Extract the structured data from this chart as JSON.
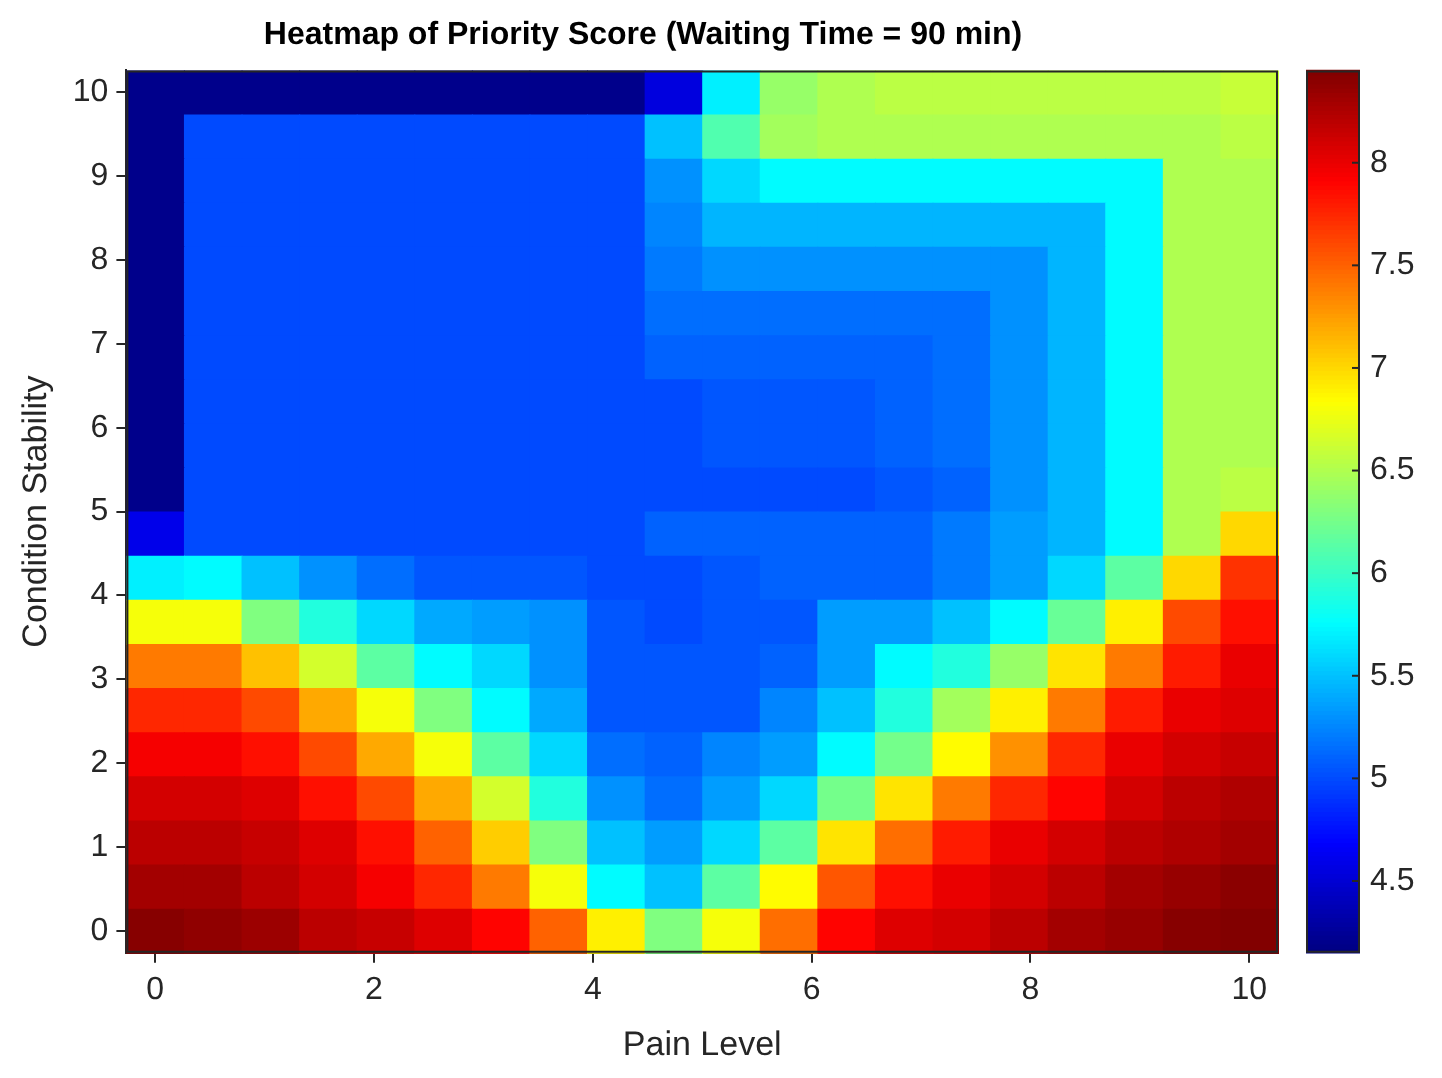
{
  "chart_data": {
    "type": "heatmap",
    "title": "Heatmap of Priority Score (Waiting Time = 90 min)",
    "xlabel": "Pain Level",
    "ylabel": "Condition Stability",
    "x": [
      0,
      0.526,
      1.053,
      1.579,
      2.105,
      2.632,
      3.158,
      3.684,
      4.211,
      4.737,
      5.263,
      5.789,
      6.316,
      6.842,
      7.368,
      7.895,
      8.421,
      8.947,
      9.474,
      10
    ],
    "y": [
      10,
      9.474,
      8.947,
      8.421,
      7.895,
      7.368,
      6.842,
      6.316,
      5.789,
      5.263,
      4.737,
      4.211,
      3.684,
      3.158,
      2.632,
      2.105,
      1.579,
      1.053,
      0.526,
      0
    ],
    "cells": [
      [
        4.2,
        4.2,
        4.2,
        4.2,
        4.2,
        4.2,
        4.2,
        4.2,
        4.2,
        4.55,
        5.7,
        6.4,
        6.5,
        6.55,
        6.55,
        6.55,
        6.55,
        6.55,
        6.55,
        6.6
      ],
      [
        4.2,
        5.0,
        5.0,
        5.0,
        5.0,
        5.0,
        5.0,
        5.0,
        5.0,
        5.5,
        6.1,
        6.45,
        6.5,
        6.5,
        6.5,
        6.5,
        6.5,
        6.5,
        6.5,
        6.55
      ],
      [
        4.2,
        5.0,
        5.0,
        5.0,
        5.0,
        5.0,
        5.0,
        5.0,
        5.0,
        5.3,
        5.6,
        5.75,
        5.75,
        5.75,
        5.75,
        5.75,
        5.75,
        5.75,
        6.5,
        6.5
      ],
      [
        4.2,
        5.0,
        5.0,
        5.0,
        5.0,
        5.0,
        5.0,
        5.0,
        5.0,
        5.25,
        5.45,
        5.45,
        5.45,
        5.45,
        5.45,
        5.45,
        5.45,
        5.75,
        6.5,
        6.5
      ],
      [
        4.2,
        5.0,
        5.0,
        5.0,
        5.0,
        5.0,
        5.0,
        5.0,
        5.0,
        5.2,
        5.3,
        5.3,
        5.3,
        5.3,
        5.3,
        5.3,
        5.45,
        5.75,
        6.5,
        6.5
      ],
      [
        4.2,
        5.0,
        5.0,
        5.0,
        5.0,
        5.0,
        5.0,
        5.0,
        5.0,
        5.15,
        5.15,
        5.15,
        5.15,
        5.15,
        5.15,
        5.3,
        5.45,
        5.75,
        6.5,
        6.5
      ],
      [
        4.2,
        5.0,
        5.0,
        5.0,
        5.0,
        5.0,
        5.0,
        5.0,
        5.0,
        5.1,
        5.1,
        5.1,
        5.1,
        5.1,
        5.15,
        5.3,
        5.45,
        5.75,
        6.5,
        6.5
      ],
      [
        4.2,
        5.0,
        5.0,
        5.0,
        5.0,
        5.0,
        5.0,
        5.0,
        5.0,
        5.0,
        5.05,
        5.05,
        5.05,
        5.1,
        5.15,
        5.3,
        5.45,
        5.75,
        6.5,
        6.5
      ],
      [
        4.2,
        5.0,
        5.0,
        5.0,
        5.0,
        5.0,
        5.0,
        5.0,
        5.0,
        5.0,
        5.05,
        5.05,
        5.05,
        5.1,
        5.15,
        5.3,
        5.45,
        5.75,
        6.5,
        6.5
      ],
      [
        4.2,
        5.0,
        5.0,
        5.0,
        5.0,
        5.0,
        5.0,
        5.0,
        5.0,
        5.0,
        5.0,
        5.0,
        5.0,
        5.05,
        5.1,
        5.3,
        5.45,
        5.75,
        6.5,
        6.55
      ],
      [
        4.6,
        5.0,
        5.0,
        5.0,
        5.0,
        5.0,
        5.0,
        5.0,
        5.0,
        5.1,
        5.1,
        5.1,
        5.1,
        5.1,
        5.2,
        5.35,
        5.45,
        5.75,
        6.5,
        7.0
      ],
      [
        5.7,
        5.75,
        5.5,
        5.3,
        5.15,
        5.05,
        5.05,
        5.05,
        5.0,
        5.0,
        5.05,
        5.1,
        5.1,
        5.1,
        5.2,
        5.35,
        5.6,
        6.15,
        7.0,
        7.7
      ],
      [
        6.8,
        6.8,
        6.3,
        5.9,
        5.6,
        5.4,
        5.35,
        5.3,
        5.05,
        5.0,
        5.05,
        5.05,
        5.35,
        5.35,
        5.5,
        5.75,
        6.2,
        6.9,
        7.6,
        7.85
      ],
      [
        7.4,
        7.4,
        7.1,
        6.65,
        6.15,
        5.75,
        5.6,
        5.3,
        5.05,
        5.05,
        5.05,
        5.1,
        5.35,
        5.75,
        5.9,
        6.4,
        6.95,
        7.4,
        7.8,
        8.0
      ],
      [
        7.75,
        7.75,
        7.6,
        7.2,
        6.8,
        6.3,
        5.75,
        5.4,
        5.05,
        5.05,
        5.05,
        5.25,
        5.5,
        5.9,
        6.45,
        6.9,
        7.4,
        7.8,
        8.0,
        8.05
      ],
      [
        7.95,
        7.95,
        7.85,
        7.6,
        7.2,
        6.8,
        6.15,
        5.6,
        5.15,
        5.1,
        5.25,
        5.35,
        5.75,
        6.25,
        6.85,
        7.3,
        7.75,
        8.0,
        8.1,
        8.15
      ],
      [
        8.1,
        8.1,
        8.05,
        7.85,
        7.6,
        7.2,
        6.65,
        5.9,
        5.3,
        5.15,
        5.35,
        5.6,
        6.25,
        6.95,
        7.4,
        7.75,
        7.9,
        8.1,
        8.2,
        8.25
      ],
      [
        8.2,
        8.2,
        8.15,
        8.05,
        7.85,
        7.5,
        7.05,
        6.3,
        5.5,
        5.35,
        5.6,
        6.15,
        6.95,
        7.45,
        7.8,
        8.0,
        8.1,
        8.2,
        8.25,
        8.3
      ],
      [
        8.3,
        8.3,
        8.2,
        8.1,
        7.95,
        7.75,
        7.4,
        6.8,
        5.75,
        5.5,
        6.15,
        6.85,
        7.55,
        7.85,
        8.0,
        8.1,
        8.2,
        8.3,
        8.35,
        8.4
      ],
      [
        8.42,
        8.38,
        8.33,
        8.2,
        8.15,
        8.05,
        7.9,
        7.5,
        6.9,
        6.3,
        6.8,
        7.45,
        7.9,
        8.05,
        8.1,
        8.2,
        8.3,
        8.35,
        8.42,
        8.44
      ]
    ],
    "xlim": [
      -0.263,
      10.263
    ],
    "xticks": [
      0,
      2,
      4,
      6,
      8,
      10
    ],
    "ylim": [
      -0.263,
      10.263
    ],
    "yticks": [
      0,
      1,
      2,
      3,
      4,
      5,
      6,
      7,
      8,
      9,
      10
    ],
    "clim": [
      4.15,
      8.45
    ],
    "cticks": [
      4.5,
      5,
      5.5,
      6,
      6.5,
      7,
      7.5,
      8
    ]
  }
}
